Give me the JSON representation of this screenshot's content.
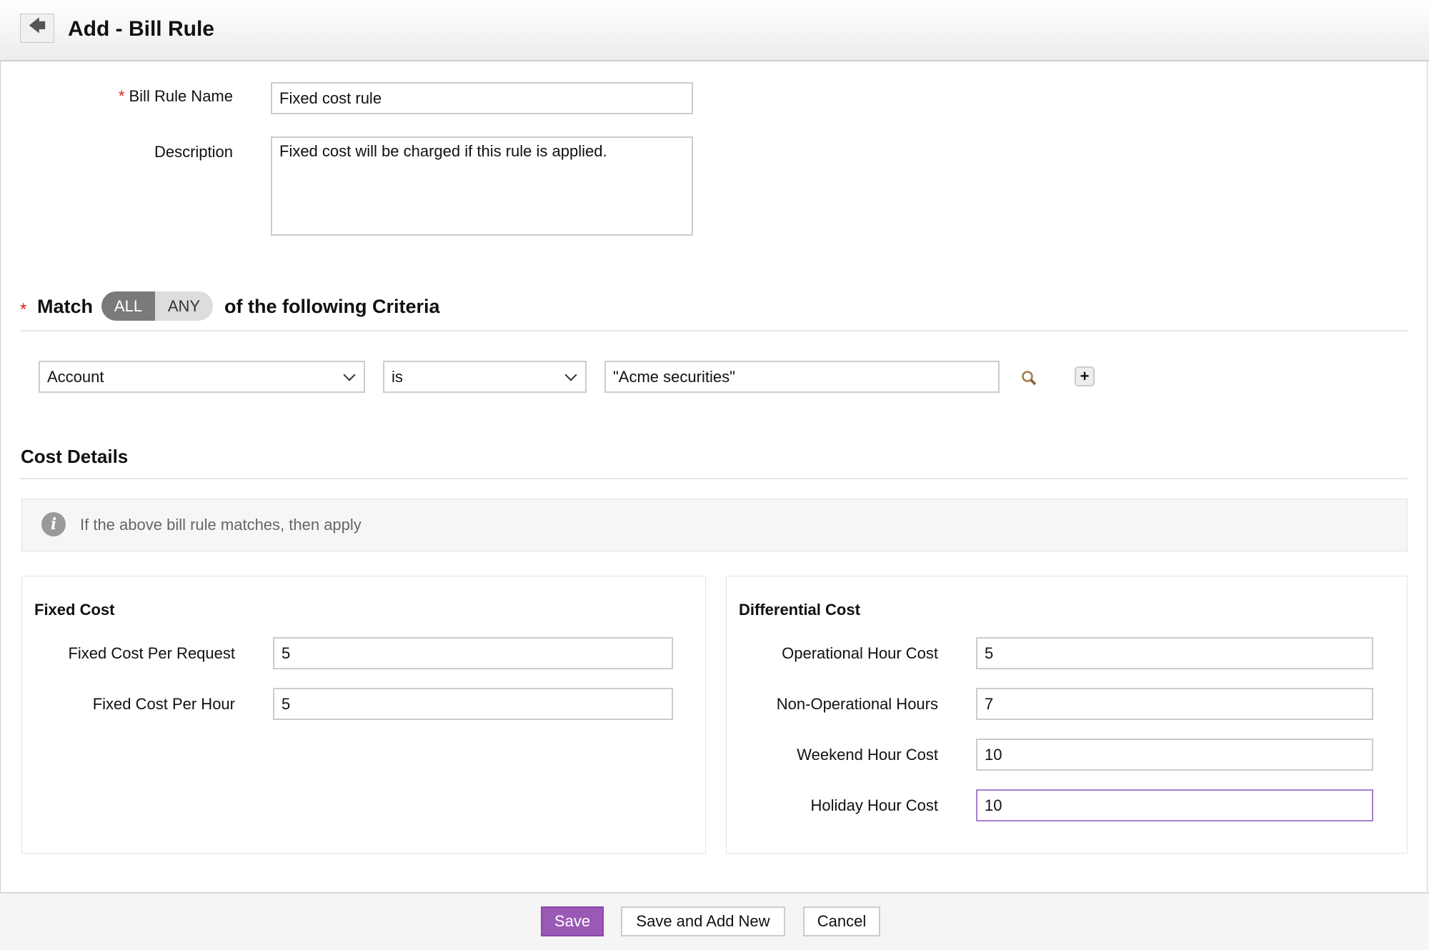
{
  "header": {
    "title": "Add - Bill Rule",
    "back_icon": "arrow-left-icon"
  },
  "form": {
    "name_label": "Bill Rule Name",
    "name_value": "Fixed cost rule",
    "required_mark": "*",
    "description_label": "Description",
    "description_value": "Fixed cost will be charged if this rule is applied."
  },
  "match": {
    "label": "Match",
    "options": [
      "ALL",
      "ANY"
    ],
    "selected": "ALL",
    "suffix": "of the following Criteria"
  },
  "criteria": {
    "field": "Account",
    "operator": "is",
    "value": "\"Acme securities\"",
    "add_label": "+"
  },
  "cost_details": {
    "title": "Cost Details",
    "info": "If the above bill rule matches, then apply",
    "fixed": {
      "title": "Fixed Cost",
      "fields": [
        {
          "label": "Fixed Cost Per Request",
          "value": "5"
        },
        {
          "label": "Fixed Cost Per Hour",
          "value": "5"
        }
      ]
    },
    "differential": {
      "title": "Differential Cost",
      "fields": [
        {
          "label": "Operational Hour Cost",
          "value": "5"
        },
        {
          "label": "Non-Operational Hours",
          "value": "7"
        },
        {
          "label": "Weekend Hour Cost",
          "value": "10"
        },
        {
          "label": "Holiday Hour Cost",
          "value": "10"
        }
      ]
    }
  },
  "footer": {
    "save": "Save",
    "save_add_new": "Save and Add New",
    "cancel": "Cancel"
  },
  "colors": {
    "primary": "#9b59b6",
    "required": "#e0201b"
  }
}
